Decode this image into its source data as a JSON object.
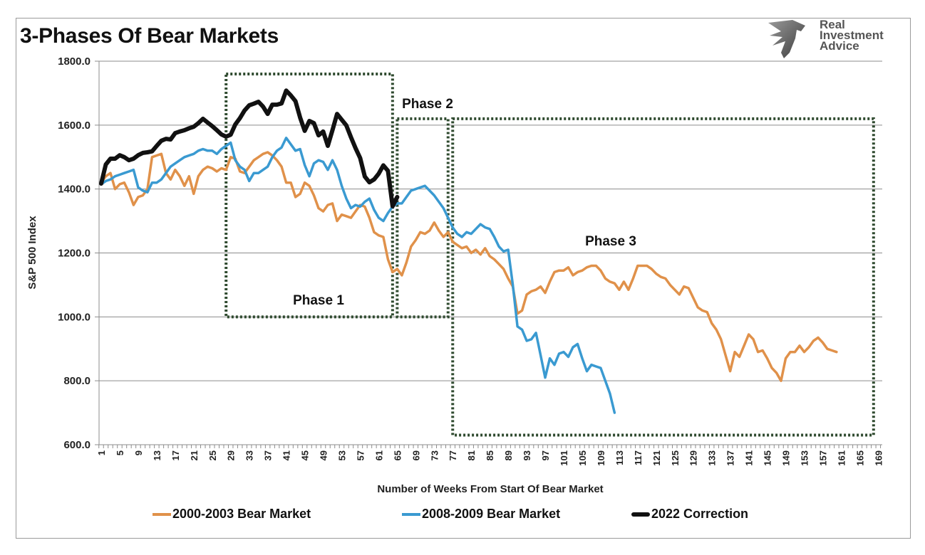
{
  "header": {
    "title": "3-Phases Of Bear Markets",
    "brand_lines": [
      "Real",
      "Investment",
      "Advice"
    ]
  },
  "chart_data": {
    "type": "line",
    "title": "3-Phases Of Bear Markets",
    "xlabel": "Number of Weeks From Start Of Bear Market",
    "ylabel": "S&P 500 Index",
    "ylim": [
      600,
      1800
    ],
    "xlim": [
      1,
      169
    ],
    "yticks": [
      "600.0",
      "800.0",
      "1000.0",
      "1200.0",
      "1400.0",
      "1600.0",
      "1800.0"
    ],
    "ytick_values": [
      600,
      800,
      1000,
      1200,
      1400,
      1600,
      1800
    ],
    "xtick_labels": [
      "1",
      "5",
      "9",
      "13",
      "17",
      "21",
      "25",
      "29",
      "33",
      "37",
      "41",
      "45",
      "49",
      "53",
      "57",
      "61",
      "65",
      "69",
      "73",
      "77",
      "81",
      "85",
      "89",
      "93",
      "97",
      "101",
      "105",
      "109",
      "113",
      "117",
      "121",
      "125",
      "129",
      "133",
      "137",
      "141",
      "145",
      "149",
      "153",
      "157",
      "161",
      "165",
      "169"
    ],
    "grid": "horizontal",
    "legend_position": "bottom",
    "series": [
      {
        "name": "2000-2003 Bear Market",
        "color": "#e0914a",
        "values": [
          1420,
          1440,
          1450,
          1400,
          1415,
          1420,
          1390,
          1350,
          1375,
          1380,
          1400,
          1500,
          1505,
          1510,
          1450,
          1430,
          1460,
          1440,
          1410,
          1440,
          1385,
          1440,
          1460,
          1470,
          1465,
          1455,
          1465,
          1460,
          1500,
          1495,
          1455,
          1450,
          1470,
          1490,
          1500,
          1510,
          1515,
          1505,
          1490,
          1470,
          1420,
          1420,
          1375,
          1385,
          1420,
          1410,
          1380,
          1340,
          1330,
          1350,
          1355,
          1300,
          1320,
          1315,
          1310,
          1330,
          1350,
          1345,
          1310,
          1265,
          1255,
          1250,
          1180,
          1140,
          1150,
          1130,
          1170,
          1220,
          1240,
          1265,
          1260,
          1270,
          1295,
          1270,
          1250,
          1265,
          1235,
          1225,
          1215,
          1220,
          1200,
          1210,
          1195,
          1215,
          1190,
          1180,
          1165,
          1150,
          1120,
          1095,
          1010,
          1020,
          1070,
          1080,
          1085,
          1095,
          1075,
          1110,
          1140,
          1145,
          1145,
          1155,
          1130,
          1140,
          1145,
          1155,
          1160,
          1160,
          1145,
          1120,
          1110,
          1105,
          1085,
          1110,
          1085,
          1120,
          1160,
          1160,
          1160,
          1150,
          1135,
          1125,
          1120,
          1100,
          1085,
          1070,
          1095,
          1090,
          1060,
          1030,
          1020,
          1015,
          980,
          960,
          930,
          880,
          830,
          890,
          875,
          910,
          945,
          930,
          890,
          895,
          870,
          840,
          825,
          800,
          870,
          890,
          890,
          910,
          890,
          905,
          925,
          935,
          920,
          900,
          895,
          890
        ]
      },
      {
        "name": "2008-2009 Bear Market",
        "color": "#3a9ad1",
        "values": [
          1415,
          1425,
          1430,
          1440,
          1445,
          1450,
          1455,
          1460,
          1405,
          1395,
          1390,
          1420,
          1420,
          1430,
          1450,
          1470,
          1480,
          1490,
          1500,
          1505,
          1510,
          1520,
          1525,
          1520,
          1520,
          1510,
          1525,
          1535,
          1545,
          1490,
          1470,
          1460,
          1425,
          1450,
          1450,
          1460,
          1470,
          1500,
          1520,
          1530,
          1560,
          1540,
          1520,
          1525,
          1475,
          1440,
          1480,
          1490,
          1485,
          1460,
          1490,
          1460,
          1410,
          1370,
          1340,
          1350,
          1345,
          1360,
          1370,
          1335,
          1310,
          1300,
          1325,
          1345,
          1355,
          1355,
          1375,
          1395,
          1400,
          1405,
          1410,
          1395,
          1380,
          1360,
          1340,
          1310,
          1280,
          1260,
          1250,
          1265,
          1260,
          1275,
          1290,
          1280,
          1275,
          1250,
          1220,
          1205,
          1210,
          1100,
          970,
          960,
          925,
          930,
          950,
          880,
          810,
          870,
          850,
          885,
          890,
          875,
          905,
          915,
          870,
          830,
          850,
          845,
          840,
          800,
          760,
          700
        ]
      },
      {
        "name": "2022 Correction",
        "color": "#111111",
        "values": [
          1417,
          1477,
          1495,
          1495,
          1506,
          1500,
          1490,
          1495,
          1506,
          1513,
          1515,
          1518,
          1535,
          1551,
          1557,
          1555,
          1575,
          1580,
          1584,
          1590,
          1595,
          1606,
          1620,
          1608,
          1597,
          1584,
          1571,
          1564,
          1570,
          1602,
          1622,
          1646,
          1662,
          1667,
          1673,
          1658,
          1635,
          1664,
          1664,
          1668,
          1708,
          1693,
          1675,
          1624,
          1582,
          1613,
          1606,
          1568,
          1580,
          1535,
          1584,
          1635,
          1617,
          1599,
          1562,
          1528,
          1497,
          1439,
          1421,
          1430,
          1448,
          1474,
          1457,
          1346,
          1375
        ]
      }
    ],
    "annotations": [
      {
        "label": "Phase 1",
        "x_range": [
          28,
          64
        ],
        "y_range": [
          1000,
          1760
        ]
      },
      {
        "label": "Phase 2",
        "x_range": [
          65,
          76
        ],
        "y_range": [
          1000,
          1620
        ]
      },
      {
        "label": "Phase 3",
        "x_range": [
          77,
          168
        ],
        "y_range": [
          630,
          1620
        ]
      }
    ]
  }
}
